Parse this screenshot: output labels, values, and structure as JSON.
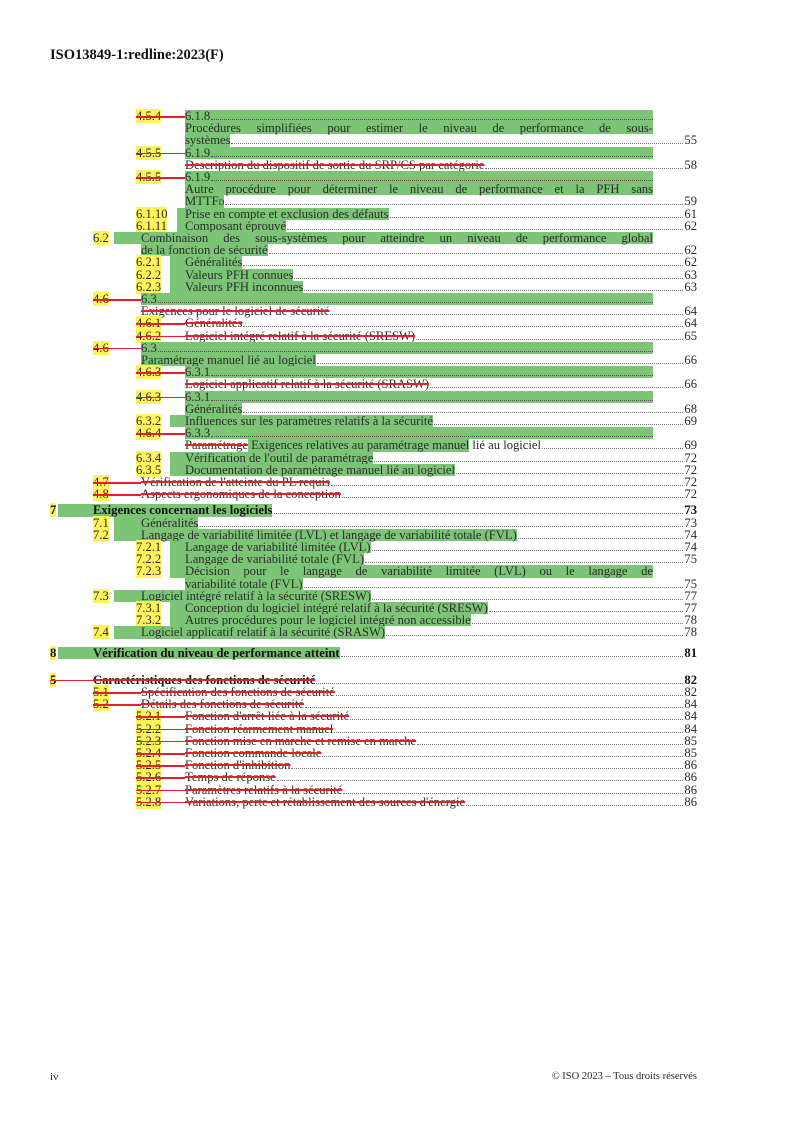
{
  "header": {
    "doc_id": "ISO13849-1:redline:2023(F)"
  },
  "colors": {
    "inserted_highlight": "#7cc576",
    "number_highlight": "#fff35c",
    "deletion": "#e4202a"
  },
  "toc": {
    "lines": [
      {
        "level": 2,
        "number": "4.5.4",
        "number_deleted": true,
        "text": [
          {
            "t": "6.1.8"
          }
        ],
        "page": "",
        "kind": "band",
        "highlight": true
      },
      {
        "level": 2,
        "number": "",
        "text": [
          {
            "t": "Procédures simplifiées pour estimer le niveau de performance de sous-"
          }
        ],
        "page": "",
        "kind": "justify",
        "highlight": true
      },
      {
        "level": 2,
        "number": "",
        "text": [
          {
            "t": "systèmes"
          }
        ],
        "page": "55",
        "kind": "normal",
        "highlight": true
      },
      {
        "level": 2,
        "number": "4.5.5",
        "number_deleted": true,
        "text": [
          {
            "t": "6.1.9"
          }
        ],
        "page": "",
        "kind": "band",
        "highlight": true
      },
      {
        "level": 2,
        "number": "",
        "text": [
          {
            "t": "Description du dispositif de sortie du SRP/CS par catégorie",
            "deleted": true
          }
        ],
        "page": "58",
        "kind": "normal",
        "highlight": false
      },
      {
        "level": 2,
        "number": "4.5.5",
        "number_deleted": true,
        "text": [
          {
            "t": "6.1.9"
          }
        ],
        "page": "",
        "kind": "band",
        "highlight": true
      },
      {
        "level": 2,
        "number": "",
        "text": [
          {
            "t": "Autre procédure pour déterminer le niveau de performance et la PFH sans"
          }
        ],
        "page": "",
        "kind": "justify",
        "highlight": true
      },
      {
        "level": 2,
        "number": "",
        "text": [
          {
            "t": "MTTF",
            "sub": "D"
          }
        ],
        "page": "59",
        "kind": "normal",
        "highlight": true
      },
      {
        "level": 2,
        "number": "6.1.10",
        "text": [
          {
            "t": "Prise en compte et exclusion des défauts"
          }
        ],
        "page": "61",
        "kind": "normal",
        "highlight": true
      },
      {
        "level": 2,
        "number": "6.1.11",
        "text": [
          {
            "t": "Composant éprouvé"
          }
        ],
        "page": "62",
        "kind": "normal",
        "highlight": true
      },
      {
        "level": 1,
        "number": "6.2",
        "text": [
          {
            "t": "Combinaison des sous-systèmes pour atteindre un niveau de performance global"
          }
        ],
        "page": "",
        "kind": "justify",
        "highlight": true
      },
      {
        "level": 1,
        "number": "",
        "text": [
          {
            "t": "de la fonction de sécurité"
          }
        ],
        "page": "62",
        "kind": "normal",
        "highlight": true
      },
      {
        "level": 2,
        "number": "6.2.1",
        "text": [
          {
            "t": "Généralités"
          }
        ],
        "page": "62",
        "kind": "normal",
        "highlight": true
      },
      {
        "level": 2,
        "number": "6.2.2",
        "text": [
          {
            "t": "Valeurs PFH connues"
          }
        ],
        "page": "63",
        "kind": "normal",
        "highlight": true
      },
      {
        "level": 2,
        "number": "6.2.3",
        "text": [
          {
            "t": "Valeurs PFH inconnues"
          }
        ],
        "page": "63",
        "kind": "normal",
        "highlight": true
      },
      {
        "level": 1,
        "number": "4.6",
        "number_deleted": true,
        "text": [
          {
            "t": "6.3"
          }
        ],
        "page": "",
        "kind": "band",
        "highlight": true
      },
      {
        "level": 1,
        "number": "",
        "text": [
          {
            "t": "Exigences pour le logiciel de sécurité",
            "deleted": true
          }
        ],
        "page": "64",
        "kind": "normal",
        "highlight": false
      },
      {
        "level": 2,
        "number": "4.6.1",
        "number_deleted": true,
        "text": [
          {
            "t": "Généralités",
            "deleted": true
          }
        ],
        "page": "64",
        "kind": "normal",
        "highlight": false
      },
      {
        "level": 2,
        "number": "4.6.2",
        "number_deleted": true,
        "text": [
          {
            "t": "Logiciel intégré relatif à la sécurité (SRESW)",
            "deleted": true
          }
        ],
        "page": "65",
        "kind": "normal",
        "highlight": false
      },
      {
        "level": 1,
        "number": "4.6",
        "number_deleted": true,
        "text": [
          {
            "t": "6.3"
          }
        ],
        "page": "",
        "kind": "band",
        "highlight": true
      },
      {
        "level": 1,
        "number": "",
        "text": [
          {
            "t": "Paramétrage manuel lié au logiciel"
          }
        ],
        "page": "66",
        "kind": "normal",
        "highlight": true
      },
      {
        "level": 2,
        "number": "4.6.3",
        "number_deleted": true,
        "text": [
          {
            "t": "6.3.1"
          }
        ],
        "page": "",
        "kind": "band",
        "highlight": true
      },
      {
        "level": 2,
        "number": "",
        "text": [
          {
            "t": "Logiciel applicatif relatif à la sécurité (SRASW)",
            "deleted": true
          }
        ],
        "page": "66",
        "kind": "normal",
        "highlight": false
      },
      {
        "level": 2,
        "number": "4.6.3",
        "number_deleted": true,
        "text": [
          {
            "t": "6.3.1"
          }
        ],
        "page": "",
        "kind": "band",
        "highlight": true
      },
      {
        "level": 2,
        "number": "",
        "text": [
          {
            "t": "Généralités"
          }
        ],
        "page": "68",
        "kind": "normal",
        "highlight": true
      },
      {
        "level": 2,
        "number": "6.3.2",
        "text": [
          {
            "t": "Influences sur les paramètres relatifs à la sécurité"
          }
        ],
        "page": "69",
        "kind": "normal",
        "highlight": true
      },
      {
        "level": 2,
        "number": "4.6.4",
        "number_deleted": true,
        "text": [
          {
            "t": "6.3.3"
          }
        ],
        "page": "",
        "kind": "band",
        "highlight": true
      },
      {
        "level": 2,
        "number": "",
        "text": [
          {
            "t": "Paramétrage",
            "deleted": true
          },
          {
            "t": " Exigences relatives au paramétrage manuel",
            "hl": true
          },
          {
            "t": " lié au logiciel"
          }
        ],
        "page": "69",
        "kind": "normal",
        "highlight": false
      },
      {
        "level": 2,
        "number": "6.3.4",
        "text": [
          {
            "t": "Vérification de l'outil de paramétrage"
          }
        ],
        "page": "72",
        "kind": "normal",
        "highlight": true
      },
      {
        "level": 2,
        "number": "6.3.5",
        "text": [
          {
            "t": "Documentation de paramétrage manuel lié au logiciel"
          }
        ],
        "page": "72",
        "kind": "normal",
        "highlight": true
      },
      {
        "level": 1,
        "number": "4.7",
        "number_deleted": true,
        "text": [
          {
            "t": "Vérification de l'atteinte du PL requis",
            "deleted": true
          }
        ],
        "page": "72",
        "kind": "normal",
        "highlight": false
      },
      {
        "level": 1,
        "number": "4.8",
        "number_deleted": true,
        "text": [
          {
            "t": "Aspects ergonomiques de la conception",
            "deleted": true
          }
        ],
        "page": "72",
        "kind": "normal",
        "highlight": false
      },
      {
        "level": 0,
        "number": "7",
        "bold": true,
        "text": [
          {
            "t": "Exigences concernant les logiciels"
          }
        ],
        "page": "73",
        "kind": "normal",
        "highlight": true
      },
      {
        "level": 1,
        "number": "7.1",
        "text": [
          {
            "t": "Généralités"
          }
        ],
        "page": "73",
        "kind": "normal",
        "highlight": true
      },
      {
        "level": 1,
        "number": "7.2",
        "text": [
          {
            "t": "Langage de variabilité limitée (LVL) et langage de variabilité totale (FVL)"
          }
        ],
        "page": "74",
        "kind": "normal",
        "highlight": true
      },
      {
        "level": 2,
        "number": "7.2.1",
        "text": [
          {
            "t": "Langage de variabilité limitée (LVL)"
          }
        ],
        "page": "74",
        "kind": "normal",
        "highlight": true
      },
      {
        "level": 2,
        "number": "7.2.2",
        "text": [
          {
            "t": "Langage de variabilité totale (FVL)"
          }
        ],
        "page": "75",
        "kind": "normal",
        "highlight": true
      },
      {
        "level": 2,
        "number": "7.2.3",
        "text": [
          {
            "t": "Décision pour le langage de variabilité limitée (LVL) ou le langage de"
          }
        ],
        "page": "",
        "kind": "justify",
        "highlight": true
      },
      {
        "level": 2,
        "number": "",
        "text": [
          {
            "t": "variabilité totale (FVL)"
          }
        ],
        "page": "75",
        "kind": "normal",
        "highlight": true
      },
      {
        "level": 1,
        "number": "7.3",
        "text": [
          {
            "t": "Logiciel intégré relatif à la sécurité (SRESW)"
          }
        ],
        "page": "77",
        "kind": "normal",
        "highlight": true
      },
      {
        "level": 2,
        "number": "7.3.1",
        "text": [
          {
            "t": "Conception du logiciel intégré relatif à la sécurité (SRESW)"
          }
        ],
        "page": "77",
        "kind": "normal",
        "highlight": true
      },
      {
        "level": 2,
        "number": "7.3.2",
        "text": [
          {
            "t": "Autres procédures pour le logiciel intégré non accessible"
          }
        ],
        "page": "78",
        "kind": "normal",
        "highlight": true
      },
      {
        "level": 1,
        "number": "7.4",
        "text": [
          {
            "t": "Logiciel applicatif relatif à la sécurité (SRASW)"
          }
        ],
        "page": "78",
        "kind": "normal",
        "highlight": true
      },
      {
        "level": 0,
        "number": "8",
        "bold": true,
        "text": [
          {
            "t": "Vérification du niveau de performance atteint"
          }
        ],
        "page": "81",
        "kind": "normal",
        "highlight": true
      },
      {
        "level": 0,
        "number": "5",
        "number_deleted": true,
        "bold": true,
        "text": [
          {
            "t": "Caractéristiques des fonctions de sécurité",
            "deleted": true
          }
        ],
        "page": "82",
        "kind": "normal",
        "highlight": false
      },
      {
        "level": 1,
        "number": "5.1",
        "number_deleted": true,
        "text": [
          {
            "t": "Spécification des fonctions de sécurité",
            "deleted": true
          }
        ],
        "page": "82",
        "kind": "normal",
        "highlight": false
      },
      {
        "level": 1,
        "number": "5.2",
        "number_deleted": true,
        "text": [
          {
            "t": "Détails des fonctions de sécurité",
            "deleted": true
          }
        ],
        "page": "84",
        "kind": "normal",
        "highlight": false
      },
      {
        "level": 2,
        "number": "5.2.1",
        "number_deleted": true,
        "text": [
          {
            "t": "Fonction d'arrêt liée à la sécurité",
            "deleted": true
          }
        ],
        "page": "84",
        "kind": "normal",
        "highlight": false
      },
      {
        "level": 2,
        "number": "5.2.2",
        "number_deleted": true,
        "text": [
          {
            "t": "Fonction réarmement manuel",
            "deleted": true
          }
        ],
        "page": "84",
        "kind": "normal",
        "highlight": false
      },
      {
        "level": 2,
        "number": "5.2.3",
        "number_deleted": true,
        "text": [
          {
            "t": "Fonction mise en marche et remise en marche",
            "deleted": true
          }
        ],
        "page": "85",
        "kind": "normal",
        "highlight": false
      },
      {
        "level": 2,
        "number": "5.2.4",
        "number_deleted": true,
        "text": [
          {
            "t": "Fonction commande locale",
            "deleted": true
          }
        ],
        "page": "85",
        "kind": "normal",
        "highlight": false
      },
      {
        "level": 2,
        "number": "5.2.5",
        "number_deleted": true,
        "text": [
          {
            "t": "Fonction d'inhibition",
            "deleted": true
          }
        ],
        "page": "86",
        "kind": "normal",
        "highlight": false
      },
      {
        "level": 2,
        "number": "5.2.6",
        "number_deleted": true,
        "text": [
          {
            "t": "Temps de réponse",
            "deleted": true
          }
        ],
        "page": "86",
        "kind": "normal",
        "highlight": false
      },
      {
        "level": 2,
        "number": "5.2.7",
        "number_deleted": true,
        "text": [
          {
            "t": "Paramètres relatifs à la sécurité",
            "deleted": true
          }
        ],
        "page": "86",
        "kind": "normal",
        "highlight": false
      },
      {
        "level": 2,
        "number": "5.2.8",
        "number_deleted": true,
        "text": [
          {
            "t": "Variations, perte et rétablissement des sources d'énergie",
            "deleted": true
          }
        ],
        "page": "86",
        "kind": "normal",
        "highlight": false
      }
    ]
  },
  "footer": {
    "page_number": "iv",
    "copyright": "© ISO 2023 – Tous droits réservés"
  }
}
